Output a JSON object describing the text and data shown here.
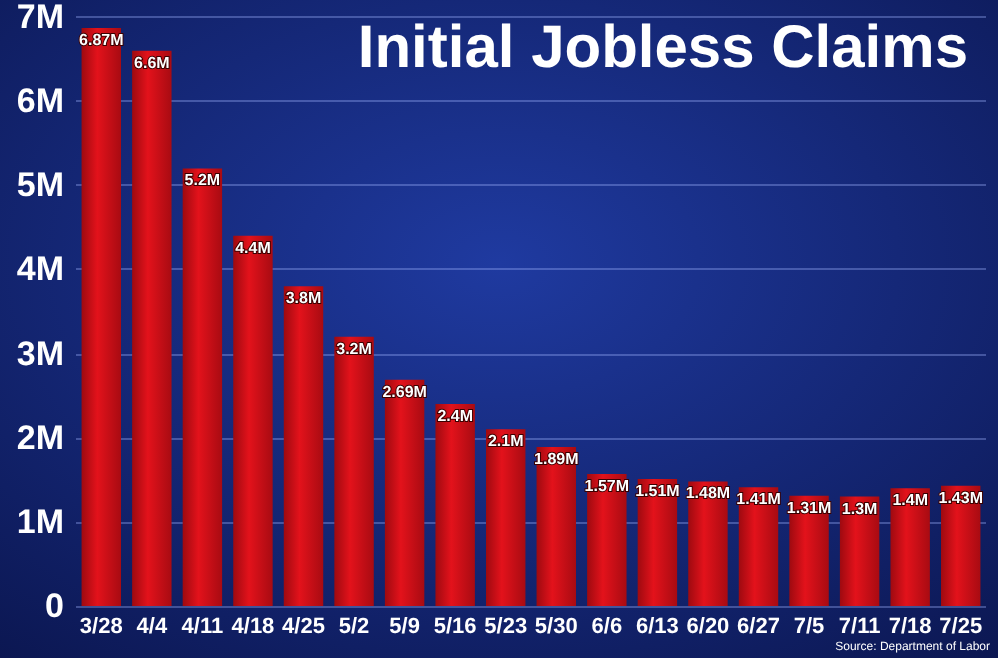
{
  "chart_data": {
    "type": "bar",
    "title": "Initial Jobless Claims",
    "categories": [
      "3/28",
      "4/4",
      "4/11",
      "4/18",
      "4/25",
      "5/2",
      "5/9",
      "5/16",
      "5/23",
      "5/30",
      "6/6",
      "6/13",
      "6/20",
      "6/27",
      "7/5",
      "7/11",
      "7/18",
      "7/25"
    ],
    "values": [
      6.87,
      6.6,
      5.2,
      4.4,
      3.8,
      3.2,
      2.69,
      2.4,
      2.1,
      1.89,
      1.57,
      1.51,
      1.48,
      1.41,
      1.31,
      1.3,
      1.4,
      1.43
    ],
    "value_labels": [
      "6.87M",
      "6.6M",
      "5.2M",
      "4.4M",
      "3.8M",
      "3.2M",
      "2.69M",
      "2.4M",
      "2.1M",
      "1.89M",
      "1.57M",
      "1.51M",
      "1.48M",
      "1.41M",
      "1.31M",
      "1.3M",
      "1.4M",
      "1.43M"
    ],
    "color": "#e3121b",
    "ylim": [
      0,
      7
    ],
    "yticks": [
      0,
      {
        "value": 1,
        "label": "1M"
      },
      {
        "value": 2,
        "label": "2M"
      },
      {
        "value": 3,
        "label": "3M"
      },
      {
        "value": 4,
        "label": "4M"
      },
      {
        "value": 5,
        "label": "5M"
      },
      {
        "value": 6,
        "label": "6M"
      },
      {
        "value": 7,
        "label": "7M"
      }
    ],
    "grid": "y",
    "annotations": [
      "Source: Department of Labor"
    ]
  }
}
